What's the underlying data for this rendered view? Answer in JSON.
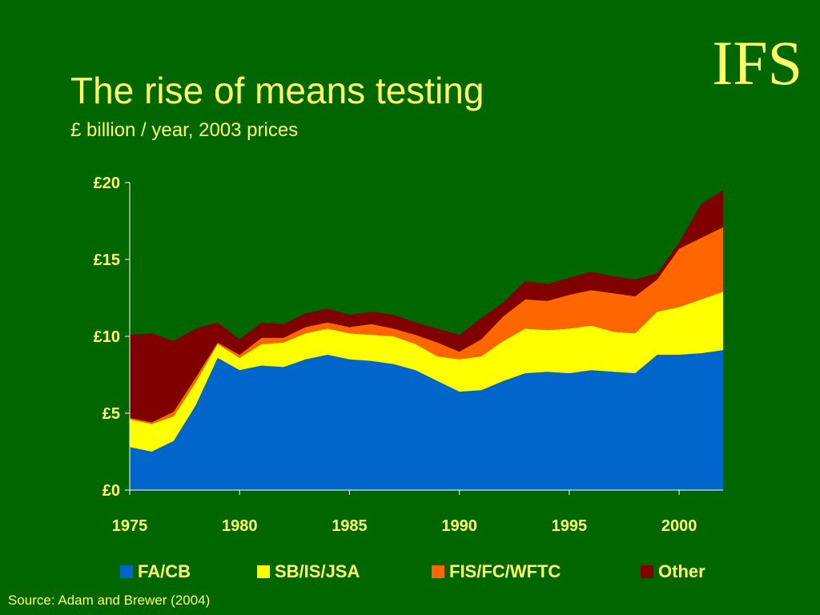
{
  "logo": "IFS",
  "title": "The rise of means testing",
  "subtitle": "£ billion / year, 2003 prices",
  "source": "Source: Adam and Brewer (2004)",
  "colors": {
    "background": "#006600",
    "text": "#ffff66",
    "axis": "#ffffff"
  },
  "chart_data": {
    "type": "area",
    "stacked": true,
    "x": [
      1975,
      1976,
      1977,
      1978,
      1979,
      1980,
      1981,
      1982,
      1983,
      1984,
      1985,
      1986,
      1987,
      1988,
      1989,
      1990,
      1991,
      1992,
      1993,
      1994,
      1995,
      1996,
      1997,
      1998,
      1999,
      2000,
      2001,
      2002
    ],
    "xlim": [
      1975,
      2002
    ],
    "xticks": [
      {
        "value": 1975,
        "label": "1975"
      },
      {
        "value": 1980,
        "label": "1980"
      },
      {
        "value": 1985,
        "label": "1985"
      },
      {
        "value": 1990,
        "label": "1990"
      },
      {
        "value": 1995,
        "label": "1995"
      },
      {
        "value": 2000,
        "label": "2000"
      }
    ],
    "ylim": [
      0,
      20
    ],
    "yticks": [
      {
        "value": 0,
        "label": "£0"
      },
      {
        "value": 5,
        "label": "£5"
      },
      {
        "value": 10,
        "label": "£10"
      },
      {
        "value": 15,
        "label": "£15"
      },
      {
        "value": 20,
        "label": "£20"
      }
    ],
    "grid": false,
    "legend_position": "bottom",
    "series": [
      {
        "name": "FA/CB",
        "color": "#0066cc",
        "values": [
          2.8,
          2.5,
          3.2,
          5.5,
          8.6,
          7.8,
          8.1,
          8.0,
          8.5,
          8.8,
          8.5,
          8.4,
          8.2,
          7.8,
          7.1,
          6.4,
          6.5,
          7.1,
          7.6,
          7.7,
          7.6,
          7.8,
          7.7,
          7.6,
          8.8,
          8.8,
          8.9,
          9.1
        ]
      },
      {
        "name": "SB/IS/JSA",
        "color": "#ffff00",
        "values": [
          1.8,
          1.8,
          1.6,
          1.5,
          0.9,
          0.8,
          1.4,
          1.6,
          1.7,
          1.7,
          1.7,
          1.7,
          1.8,
          1.7,
          1.6,
          2.1,
          2.2,
          2.6,
          2.9,
          2.7,
          2.9,
          2.9,
          2.6,
          2.6,
          2.8,
          3.1,
          3.5,
          3.8
        ]
      },
      {
        "name": "FIS/FC/WFTC",
        "color": "#ff6600",
        "values": [
          0.1,
          0.1,
          0.3,
          0.3,
          0.1,
          0.2,
          0.4,
          0.3,
          0.4,
          0.4,
          0.4,
          0.7,
          0.5,
          0.6,
          0.9,
          0.5,
          1.1,
          1.6,
          1.9,
          1.9,
          2.2,
          2.3,
          2.5,
          2.4,
          2.1,
          3.8,
          4.0,
          4.2
        ]
      },
      {
        "name": "Other",
        "color": "#800000",
        "values": [
          5.4,
          5.8,
          4.6,
          3.2,
          1.3,
          1.0,
          1.0,
          0.9,
          0.9,
          0.9,
          0.8,
          0.8,
          0.9,
          0.8,
          0.9,
          1.1,
          1.4,
          0.9,
          1.2,
          1.1,
          1.1,
          1.2,
          1.1,
          1.1,
          0.4,
          0.4,
          2.2,
          2.4
        ]
      }
    ]
  }
}
